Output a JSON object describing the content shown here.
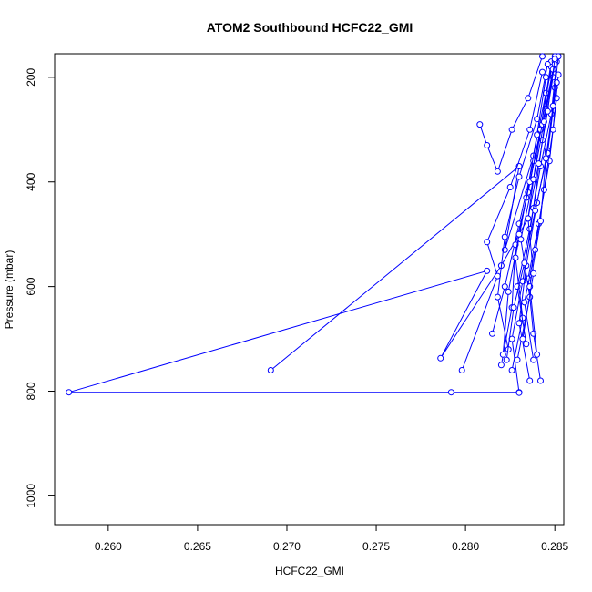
{
  "chart_data": {
    "type": "line",
    "title": "ATOM2 Southbound HCFC22_GMI",
    "xlabel": "HCFC22_GMI",
    "ylabel": "Pressure (mbar)",
    "xlim": [
      0.257,
      0.2855
    ],
    "ylim": [
      1055,
      155
    ],
    "y_reversed": true,
    "x_ticks": [
      0.26,
      0.265,
      0.27,
      0.275,
      0.28,
      0.285
    ],
    "x_tick_labels": [
      "0.260",
      "0.265",
      "0.270",
      "0.275",
      "0.280",
      "0.285"
    ],
    "y_ticks": [
      200,
      400,
      600,
      800,
      1000
    ],
    "y_tick_labels": [
      "200",
      "400",
      "600",
      "800",
      "1000"
    ],
    "grid": false,
    "series_color": "#0000ff",
    "series": [
      {
        "x": [
          0.283,
          0.2792,
          0.2578,
          0.2812,
          0.2786,
          0.282,
          0.2835,
          0.2842,
          0.2848
        ],
        "y": [
          802,
          802,
          802,
          570,
          737,
          560,
          470,
          300,
          170
        ]
      },
      {
        "x": [
          0.2691,
          0.283,
          0.2822,
          0.2838,
          0.2845,
          0.285
        ],
        "y": [
          760,
          370,
          530,
          350,
          230,
          160
        ]
      },
      {
        "x": [
          0.2798,
          0.2818,
          0.2812,
          0.2825,
          0.2836,
          0.2843
        ],
        "y": [
          760,
          580,
          515,
          410,
          300,
          190
        ]
      },
      {
        "x": [
          0.2815,
          0.2822,
          0.283,
          0.2838,
          0.2845,
          0.285
        ],
        "y": [
          690,
          600,
          480,
          360,
          260,
          170
        ]
      },
      {
        "x": [
          0.282,
          0.2826,
          0.2828,
          0.2835,
          0.2842,
          0.2848
        ],
        "y": [
          750,
          640,
          520,
          420,
          300,
          180
        ]
      },
      {
        "x": [
          0.2824,
          0.2818,
          0.2822,
          0.283,
          0.284,
          0.2846
        ],
        "y": [
          720,
          620,
          505,
          390,
          280,
          175
        ]
      },
      {
        "x": [
          0.283,
          0.2826,
          0.2832,
          0.2838,
          0.2843,
          0.2849
        ],
        "y": [
          803,
          700,
          590,
          450,
          320,
          200
        ]
      },
      {
        "x": [
          0.2836,
          0.283,
          0.2834,
          0.284,
          0.2846,
          0.285
        ],
        "y": [
          780,
          670,
          560,
          440,
          340,
          220
        ]
      },
      {
        "x": [
          0.2842,
          0.2838,
          0.2835,
          0.2841,
          0.2847,
          0.2851
        ],
        "y": [
          780,
          690,
          585,
          480,
          360,
          240
        ]
      },
      {
        "x": [
          0.2826,
          0.2832,
          0.2828,
          0.2834,
          0.284,
          0.2845
        ],
        "y": [
          760,
          660,
          545,
          430,
          310,
          200
        ]
      },
      {
        "x": [
          0.2821,
          0.2824,
          0.283,
          0.2836,
          0.2843,
          0.2849
        ],
        "y": [
          730,
          610,
          500,
          400,
          290,
          185
        ]
      },
      {
        "x": [
          0.2834,
          0.2829,
          0.2836,
          0.2842,
          0.2848,
          0.2851
        ],
        "y": [
          710,
          600,
          490,
          370,
          270,
          170
        ]
      },
      {
        "x": [
          0.2808,
          0.2812,
          0.2818,
          0.2826,
          0.2835,
          0.2843
        ],
        "y": [
          290,
          330,
          380,
          300,
          240,
          160
        ]
      },
      {
        "x": [
          0.2838,
          0.2833,
          0.2839,
          0.2844,
          0.2849,
          0.2852
        ],
        "y": [
          740,
          630,
          530,
          415,
          300,
          195
        ]
      },
      {
        "x": [
          0.2829,
          0.2836,
          0.2831,
          0.2838,
          0.2844,
          0.285
        ],
        "y": [
          740,
          620,
          510,
          395,
          285,
          175
        ]
      },
      {
        "x": [
          0.2823,
          0.2827,
          0.2833,
          0.2839,
          0.2846,
          0.2851
        ],
        "y": [
          740,
          640,
          555,
          455,
          345,
          210
        ]
      },
      {
        "x": [
          0.284,
          0.2836,
          0.2842,
          0.2845,
          0.2849,
          0.2852
        ],
        "y": [
          730,
          600,
          475,
          355,
          255,
          160
        ]
      },
      {
        "x": [
          0.2832,
          0.2838,
          0.2835,
          0.2841,
          0.2846,
          0.285
        ],
        "y": [
          700,
          575,
          470,
          365,
          265,
          165
        ]
      }
    ]
  }
}
